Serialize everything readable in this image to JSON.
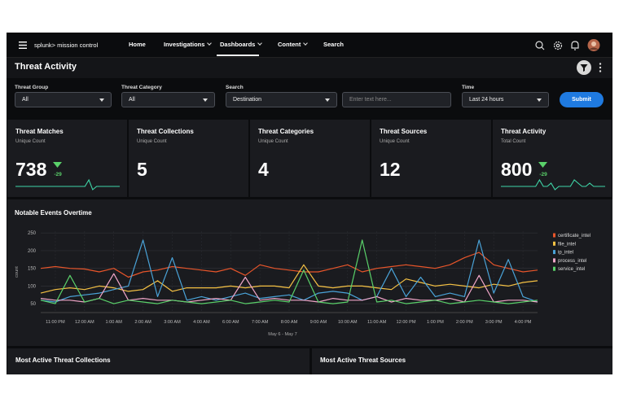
{
  "nav": {
    "brand": "splunk> mission control",
    "items": [
      {
        "label": "Home",
        "has_menu": false,
        "active": false
      },
      {
        "label": "Investigations",
        "has_menu": true,
        "active": false
      },
      {
        "label": "Dashboards",
        "has_menu": true,
        "active": true
      },
      {
        "label": "Content",
        "has_menu": true,
        "active": false
      },
      {
        "label": "Search",
        "has_menu": false,
        "active": false
      }
    ]
  },
  "header": {
    "title": "Threat Activity"
  },
  "filters": [
    {
      "label": "Threat Group",
      "value": "All",
      "kind": "dropdown"
    },
    {
      "label": "Threat Category",
      "value": "All",
      "kind": "dropdown"
    },
    {
      "label": "Search",
      "value": "Destination",
      "kind": "dropdown"
    },
    {
      "placeholder": "Enter text here...",
      "kind": "input"
    },
    {
      "label": "Time",
      "value": "Last 24 hours",
      "kind": "dropdown"
    }
  ],
  "submit": "Submit",
  "cards": [
    {
      "title": "Threat Matches",
      "subtitle": "Unique Count",
      "value": 738,
      "delta": -29,
      "trend": [
        10,
        10,
        10,
        10,
        10,
        10,
        10,
        10,
        10,
        10,
        10,
        10,
        10,
        10,
        10,
        10,
        10,
        10,
        10,
        12,
        9,
        10,
        10,
        10,
        10,
        10,
        10,
        10
      ]
    },
    {
      "title": "Threat Collections",
      "subtitle": "Unique Count",
      "value": 5
    },
    {
      "title": "Threat Categories",
      "subtitle": "Unique Count",
      "value": 4
    },
    {
      "title": "Threat Sources",
      "subtitle": "Unique Count",
      "value": 12
    },
    {
      "title": "Threat Activity",
      "subtitle": "Total Count",
      "value": 800,
      "delta": -29,
      "trend": [
        10,
        10,
        10,
        10,
        10,
        10,
        10,
        10,
        10,
        10,
        12,
        10,
        10,
        11,
        9,
        10,
        10,
        10,
        10,
        12,
        11,
        10,
        10,
        11,
        10,
        10,
        10,
        10
      ]
    }
  ],
  "chart_data": {
    "type": "line",
    "title": "Notable Events Overtime",
    "y_label": "count",
    "x_label": "May 6 - May 7",
    "categories": [
      null,
      "11:00 PM",
      null,
      "12:00 AM",
      null,
      "1:00 AM",
      null,
      "2:00 AM",
      null,
      "3:00 AM",
      null,
      "4:00 AM",
      null,
      "6:00 AM",
      null,
      "7:00 AM",
      null,
      "8:00 AM",
      null,
      "9:00 AM",
      null,
      "10:00 AM",
      null,
      "11:00 AM",
      null,
      "12:00 PM",
      null,
      "1:00 PM",
      null,
      "2:00 PM",
      null,
      "3:00 PM",
      null,
      "4:00 PM",
      null
    ],
    "series": [
      {
        "name": "certificate_intel",
        "color": "#e8552a",
        "values": [
          150,
          155,
          150,
          148,
          140,
          150,
          125,
          140,
          145,
          155,
          150,
          145,
          140,
          150,
          130,
          160,
          150,
          145,
          140,
          140,
          150,
          160,
          140,
          150,
          155,
          160,
          155,
          150,
          160,
          180,
          195,
          160,
          150,
          140,
          145
        ]
      },
      {
        "name": "file_intel",
        "color": "#f6c244",
        "values": [
          80,
          90,
          95,
          90,
          100,
          95,
          85,
          90,
          115,
          85,
          95,
          95,
          95,
          100,
          95,
          100,
          100,
          95,
          160,
          100,
          95,
          100,
          100,
          95,
          90,
          120,
          110,
          100,
          105,
          100,
          95,
          105,
          100,
          110,
          115
        ]
      },
      {
        "name": "ip_intel",
        "color": "#4aa3d8",
        "values": [
          60,
          55,
          70,
          75,
          80,
          90,
          100,
          230,
          70,
          180,
          60,
          70,
          60,
          70,
          80,
          65,
          70,
          75,
          60,
          80,
          85,
          80,
          60,
          70,
          150,
          70,
          125,
          70,
          80,
          70,
          230,
          80,
          175,
          70,
          55
        ]
      },
      {
        "name": "process_intel",
        "color": "#f0a6c8",
        "values": [
          65,
          60,
          60,
          55,
          65,
          135,
          60,
          65,
          60,
          60,
          55,
          60,
          65,
          60,
          125,
          60,
          65,
          60,
          60,
          55,
          65,
          60,
          60,
          70,
          55,
          65,
          60,
          60,
          65,
          55,
          130,
          55,
          60,
          60,
          55
        ]
      },
      {
        "name": "service_intel",
        "color": "#5ad16a",
        "values": [
          60,
          50,
          130,
          55,
          65,
          50,
          60,
          55,
          50,
          60,
          55,
          50,
          55,
          60,
          50,
          55,
          60,
          55,
          145,
          55,
          50,
          55,
          230,
          55,
          60,
          50,
          55,
          60,
          50,
          55,
          60,
          55,
          50,
          55,
          60
        ]
      }
    ],
    "ylim": [
      25,
      255
    ],
    "yticks": [
      50,
      100,
      150,
      200,
      250
    ],
    "grid": true,
    "legend": "right"
  },
  "panels": [
    "Most Active Threat Collections",
    "Most Active Threat Sources"
  ]
}
